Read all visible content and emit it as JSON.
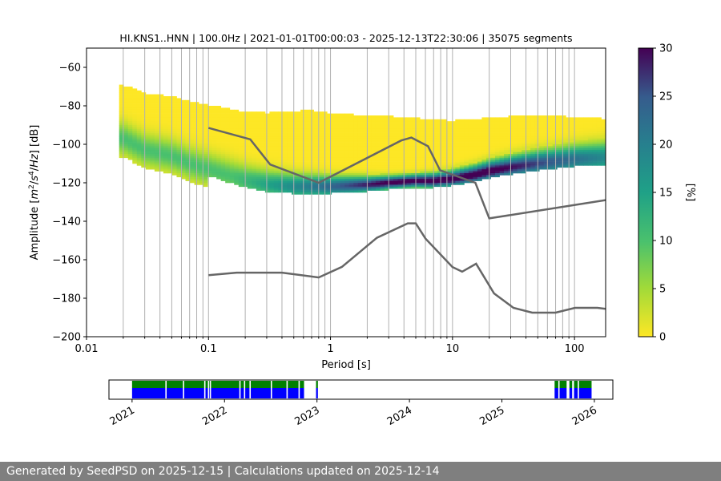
{
  "chart_data": [
    {
      "type": "heatmap",
      "title": "HI.KNS1..HNN | 100.0Hz | 2021-01-01T00:00:03 - 2025-12-13T22:30:06 | 35075 segments",
      "xlabel": "Period [s]",
      "ylabel": "Amplitude [m²/s⁴/Hz] [dB]",
      "x_scale": "log",
      "xlim": [
        0.01,
        180
      ],
      "ylim": [
        -200,
        -50
      ],
      "x_ticks": [
        0.01,
        0.1,
        1,
        10,
        100
      ],
      "x_tick_labels": [
        "0.01",
        "0.1",
        "1",
        "10",
        "100"
      ],
      "y_ticks": [
        -200,
        -180,
        -160,
        -140,
        -120,
        -100,
        -80,
        -60
      ],
      "y_tick_labels": [
        "−200",
        "−180",
        "−160",
        "−140",
        "−120",
        "−100",
        "−80",
        "−60"
      ],
      "grid": "vertical, at each period decade subdivision",
      "colorbar": {
        "label": "[%]",
        "range": [
          0,
          30
        ],
        "ticks": [
          0,
          5,
          10,
          15,
          20,
          25,
          30
        ],
        "tick_labels": [
          "0",
          "5",
          "10",
          "15",
          "20",
          "25",
          "30"
        ],
        "colormap": "viridis_r"
      },
      "mode_curve": {
        "x": [
          0.02,
          0.03,
          0.05,
          0.07,
          0.1,
          0.2,
          0.3,
          0.5,
          0.8,
          1,
          2,
          3,
          5,
          7,
          10,
          15,
          20,
          30,
          50,
          100,
          180
        ],
        "y": [
          -97,
          -103,
          -106,
          -110,
          -113,
          -119,
          -121,
          -122,
          -122,
          -122,
          -121,
          -120,
          -119,
          -119,
          -118,
          -116,
          -114,
          -112,
          -110,
          -108,
          -107
        ]
      },
      "nhnm": {
        "x": [
          0.1,
          0.22,
          0.32,
          0.8,
          3.8,
          4.6,
          6.3,
          7.9,
          15.4,
          20,
          180
        ],
        "y": [
          -91.5,
          -97.4,
          -110.5,
          -120,
          -98,
          -96.5,
          -101,
          -113.5,
          -120,
          -138.5,
          -129
        ]
      },
      "nlnm": {
        "x": [
          0.1,
          0.17,
          0.4,
          0.8,
          1.24,
          2.4,
          4.3,
          5,
          6,
          10,
          12,
          15.6,
          21.9,
          31.6,
          45,
          70,
          101,
          154,
          180
        ],
        "y": [
          -168,
          -166.7,
          -166.7,
          -169.2,
          -163.7,
          -148.6,
          -141.1,
          -141.1,
          -149,
          -163.8,
          -166.2,
          -162.1,
          -177.5,
          -185,
          -187.5,
          -187.5,
          -185,
          -185,
          -185.5
        ]
      },
      "colors": {
        "reference_curves": "#666666"
      }
    },
    {
      "type": "timeline",
      "x_tick_labels": [
        "2021",
        "2022",
        "2023",
        "2024",
        "2025",
        "2026"
      ],
      "x_ticks": [
        2021,
        2022,
        2023,
        2024,
        2025,
        2026
      ],
      "xlim": [
        2020.75,
        2026.2
      ],
      "top_row_label": "",
      "spans": [
        [
          2021.0,
          2022.86
        ],
        [
          2022.99,
          2023.01
        ],
        [
          2025.57,
          2025.7
        ],
        [
          2025.73,
          2025.76
        ],
        [
          2025.78,
          2025.97
        ]
      ],
      "gaps": [
        2021.36,
        2021.55,
        2021.78,
        2021.82,
        2021.84,
        2022.16,
        2022.21,
        2022.27,
        2022.5,
        2022.67,
        2022.8,
        2025.61,
        2025.82
      ],
      "colors": {
        "top_bar": "#008000",
        "bottom_bar": "#0000ff"
      }
    }
  ],
  "footer": {
    "text": "Generated by SeedPSD on 2025-12-15 | Calculations updated on 2025-12-14"
  }
}
